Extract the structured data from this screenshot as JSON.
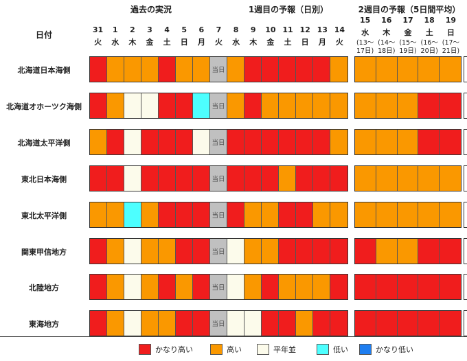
{
  "sections": {
    "past": "過去の実況",
    "week1": "1週目の予報（日別）",
    "week2": "2週目の予報（5日間平均）"
  },
  "date_label": "日付",
  "legend": [
    {
      "key": "vhigh",
      "label": "かなり高い"
    },
    {
      "key": "high",
      "label": "高い"
    },
    {
      "key": "normal",
      "label": "平年並"
    },
    {
      "key": "low",
      "label": "低い"
    },
    {
      "key": "vlow",
      "label": "かなり低い"
    }
  ],
  "colors": {
    "vhigh": "#f01d1d",
    "high": "#fa9800",
    "normal": "#fcfbeb",
    "low": "#4dffff",
    "vlow": "#1e7ef0",
    "today": "#c0c0c0"
  },
  "today_label": "当日",
  "days": [
    {
      "d": "31",
      "w": "火"
    },
    {
      "d": "1",
      "w": "水"
    },
    {
      "d": "2",
      "w": "木"
    },
    {
      "d": "3",
      "w": "金"
    },
    {
      "d": "4",
      "w": "土"
    },
    {
      "d": "5",
      "w": "日"
    },
    {
      "d": "6",
      "w": "月"
    },
    {
      "d": "7",
      "w": "火"
    },
    {
      "d": "8",
      "w": "水"
    },
    {
      "d": "9",
      "w": "木"
    },
    {
      "d": "10",
      "w": "金"
    },
    {
      "d": "11",
      "w": "土"
    },
    {
      "d": "12",
      "w": "日"
    },
    {
      "d": "13",
      "w": "月"
    },
    {
      "d": "14",
      "w": "火"
    }
  ],
  "week2_days": [
    {
      "d": "15",
      "w": "水",
      "r1": "(13～",
      "r2": "17日)"
    },
    {
      "d": "16",
      "w": "木",
      "r1": "(14～",
      "r2": "18日)"
    },
    {
      "d": "17",
      "w": "金",
      "r1": "(15～",
      "r2": "19日)"
    },
    {
      "d": "18",
      "w": "土",
      "r1": "(16～",
      "r2": "20日)"
    },
    {
      "d": "19",
      "w": "日",
      "r1": "(17～",
      "r2": "21日)"
    }
  ],
  "rows": [
    {
      "name": "北海道日本海側",
      "daily": [
        "vhigh",
        "high",
        "high",
        "high",
        "vhigh",
        "high",
        "high",
        "today",
        "high",
        "vhigh",
        "vhigh",
        "vhigh",
        "vhigh",
        "vhigh",
        "high"
      ],
      "weekly": [
        "high",
        "high",
        "high",
        "high",
        "high"
      ]
    },
    {
      "name": "北海道オホーツク海側",
      "daily": [
        "vhigh",
        "high",
        "normal",
        "normal",
        "vhigh",
        "vhigh",
        "low",
        "today",
        "high",
        "vhigh",
        "high",
        "high",
        "high",
        "high",
        "high"
      ],
      "weekly": [
        "high",
        "high",
        "high",
        "vhigh",
        "vhigh"
      ]
    },
    {
      "name": "北海道太平洋側",
      "daily": [
        "high",
        "vhigh",
        "normal",
        "vhigh",
        "vhigh",
        "vhigh",
        "normal",
        "today",
        "vhigh",
        "vhigh",
        "vhigh",
        "vhigh",
        "vhigh",
        "vhigh",
        "high"
      ],
      "weekly": [
        "high",
        "high",
        "high",
        "vhigh",
        "vhigh"
      ]
    },
    {
      "name": "東北日本海側",
      "daily": [
        "vhigh",
        "vhigh",
        "normal",
        "vhigh",
        "vhigh",
        "vhigh",
        "vhigh",
        "today",
        "vhigh",
        "vhigh",
        "vhigh",
        "high",
        "vhigh",
        "vhigh",
        "vhigh"
      ],
      "weekly": [
        "high",
        "high",
        "high",
        "high",
        "high"
      ]
    },
    {
      "name": "東北太平洋側",
      "daily": [
        "high",
        "high",
        "low",
        "high",
        "vhigh",
        "vhigh",
        "vhigh",
        "today",
        "vhigh",
        "high",
        "high",
        "vhigh",
        "vhigh",
        "high",
        "high"
      ],
      "weekly": [
        "high",
        "high",
        "high",
        "high",
        "high"
      ]
    },
    {
      "name": "関東甲信地方",
      "daily": [
        "vhigh",
        "high",
        "normal",
        "high",
        "high",
        "vhigh",
        "vhigh",
        "today",
        "normal",
        "high",
        "high",
        "vhigh",
        "vhigh",
        "vhigh",
        "vhigh"
      ],
      "weekly": [
        "vhigh",
        "high",
        "high",
        "vhigh",
        "vhigh"
      ]
    },
    {
      "name": "北陸地方",
      "daily": [
        "vhigh",
        "high",
        "normal",
        "high",
        "vhigh",
        "high",
        "vhigh",
        "today",
        "normal",
        "high",
        "vhigh",
        "high",
        "high",
        "high",
        "vhigh"
      ],
      "weekly": [
        "vhigh",
        "vhigh",
        "vhigh",
        "vhigh",
        "vhigh"
      ]
    },
    {
      "name": "東海地方",
      "daily": [
        "vhigh",
        "high",
        "normal",
        "high",
        "high",
        "vhigh",
        "vhigh",
        "today",
        "normal",
        "normal",
        "vhigh",
        "vhigh",
        "high",
        "vhigh",
        "vhigh"
      ],
      "weekly": [
        "vhigh",
        "vhigh",
        "vhigh",
        "vhigh",
        "vhigh"
      ]
    }
  ]
}
